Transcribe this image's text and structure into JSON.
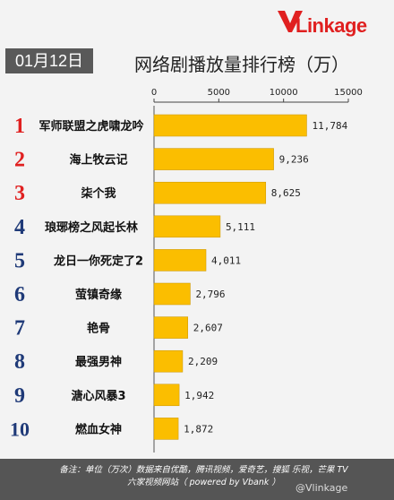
{
  "brand": {
    "logo_text": "VLinkage",
    "logo_v": "V",
    "logo_rest": "Linkage"
  },
  "header": {
    "date": "01月12日",
    "title": "网络剧播放量排行榜（万）"
  },
  "colors": {
    "bar": "#FBBE00",
    "rank_top3": "#E02020",
    "rank_other": "#1F3A78",
    "footer_bg": "#555555"
  },
  "chart_data": {
    "type": "bar",
    "orientation": "horizontal",
    "title": "网络剧播放量排行榜（万）",
    "xlim": [
      0,
      15000
    ],
    "x_ticks": [
      "0",
      "5000",
      "10000",
      "15000"
    ],
    "grid": false,
    "ranks": [
      "1",
      "2",
      "3",
      "4",
      "5",
      "6",
      "7",
      "8",
      "9",
      "10"
    ],
    "categories": [
      "军师联盟之虎啸龙吟",
      "海上牧云记",
      "柒个我",
      "琅琊榜之风起长林",
      "龙日一你死定了2",
      "萤镇奇缘",
      "艳骨",
      "最强男神",
      "溏心风暴3",
      "燃血女神"
    ],
    "values": [
      11784,
      9236,
      8625,
      5111,
      4011,
      2796,
      2607,
      2209,
      1942,
      1872
    ],
    "value_labels": [
      "11,784",
      "9,236",
      "8,625",
      "5,111",
      "4,011",
      "2,796",
      "2,607",
      "2,209",
      "1,942",
      "1,872"
    ]
  },
  "footer": {
    "line1": "备注：单位（万次）数据来自优酷，腾讯视频，爱奇艺，搜狐 乐视，芒果 TV",
    "line2": "六家视频网站（ powered by Vbank ）"
  },
  "watermark": "@Vlinkage"
}
